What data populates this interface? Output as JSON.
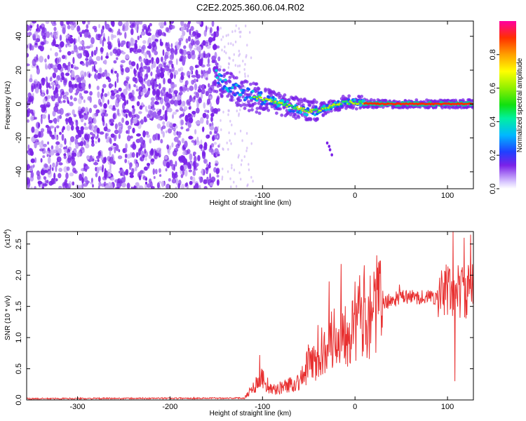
{
  "figure_title": "C2E2.2025.360.06.04.R02",
  "chart_data": [
    {
      "type": "heatmap",
      "xlabel": "Height of straight line (km)",
      "ylabel": "Frequency (Hz)",
      "xlim": [
        -355,
        128
      ],
      "ylim": [
        -50,
        49
      ],
      "x_ticks": [
        -300,
        -200,
        -100,
        0,
        100
      ],
      "y_ticks": [
        -40,
        -20,
        0,
        20,
        40
      ],
      "noise_region_x": [
        -355,
        -150
      ],
      "ridge": {
        "x": [
          -150,
          -140,
          -130,
          -120,
          -110,
          -100,
          -90,
          -80,
          -70,
          -60,
          -50,
          -40,
          -30,
          -20,
          -10,
          0,
          10,
          20,
          40,
          60,
          80,
          100,
          128
        ],
        "y": [
          16,
          11,
          8,
          6,
          4.5,
          3,
          1.5,
          0,
          -1.5,
          -3,
          -4,
          -4,
          -2,
          0,
          1,
          1,
          0.5,
          0.2,
          0.1,
          0.1,
          0.1,
          0.1,
          0.1
        ]
      },
      "colorbar": {
        "label": "Normalized spectral amplitude",
        "range": [
          0,
          1
        ],
        "ticks": [
          0.0,
          0.2,
          0.4,
          0.6,
          0.8
        ],
        "tick_labels": [
          "0.0",
          "0.2",
          "0.4",
          "0.6",
          "0.8"
        ]
      }
    },
    {
      "type": "line",
      "xlabel": "Height of straight line (km)",
      "ylabel": "SNR (10 * v/v)",
      "y_multiplier": "(x10",
      "y_multiplier_exp": "4",
      "y_multiplier_close": ")",
      "xlim": [
        -355,
        128
      ],
      "ylim": [
        0,
        2.7
      ],
      "x_ticks": [
        -300,
        -200,
        -100,
        0,
        100
      ],
      "y_ticks": [
        0.0,
        0.5,
        1.0,
        1.5,
        2.0,
        2.5
      ],
      "y_tick_labels": [
        "0.0",
        "0.5",
        "1.0",
        "1.5",
        "2.0",
        "2.5"
      ],
      "series_color": "#e83030",
      "envelope": {
        "x": [
          -355,
          -120,
          -110,
          -105,
          -100,
          -95,
          -90,
          -80,
          -70,
          -60,
          -55,
          -50,
          -45,
          -40,
          -35,
          -30,
          -25,
          -20,
          -15,
          -10,
          0,
          10,
          20,
          30,
          40,
          50,
          60,
          70,
          80,
          90,
          95,
          100,
          105,
          110,
          115,
          120,
          128
        ],
        "y": [
          0.02,
          0.03,
          0.2,
          0.3,
          0.35,
          0.25,
          0.15,
          0.2,
          0.25,
          0.3,
          0.4,
          0.6,
          0.6,
          0.55,
          0.8,
          1.0,
          0.95,
          1.0,
          1.1,
          1.15,
          1.25,
          1.4,
          1.5,
          1.55,
          1.6,
          1.65,
          1.65,
          1.65,
          1.65,
          1.65,
          1.7,
          1.75,
          1.7,
          1.75,
          1.75,
          1.7,
          1.8
        ]
      },
      "spikes": [
        {
          "x": -103,
          "y": 0.72
        },
        {
          "x": -40,
          "y": 1.2
        },
        {
          "x": -28,
          "y": 1.9
        },
        {
          "x": -15,
          "y": 2.18
        },
        {
          "x": 30,
          "y": 1.75
        },
        {
          "x": 48,
          "y": 1.85
        },
        {
          "x": 102,
          "y": 2.1
        },
        {
          "x": 106,
          "y": 2.7
        },
        {
          "x": 108,
          "y": 0.3
        },
        {
          "x": 118,
          "y": 2.6
        },
        {
          "x": 125,
          "y": 2.65
        }
      ]
    }
  ],
  "colors": {
    "noise_cloud": "#7a22e8",
    "noise_light": "#c7a8f4",
    "ridge_core": "#ff2a00"
  }
}
